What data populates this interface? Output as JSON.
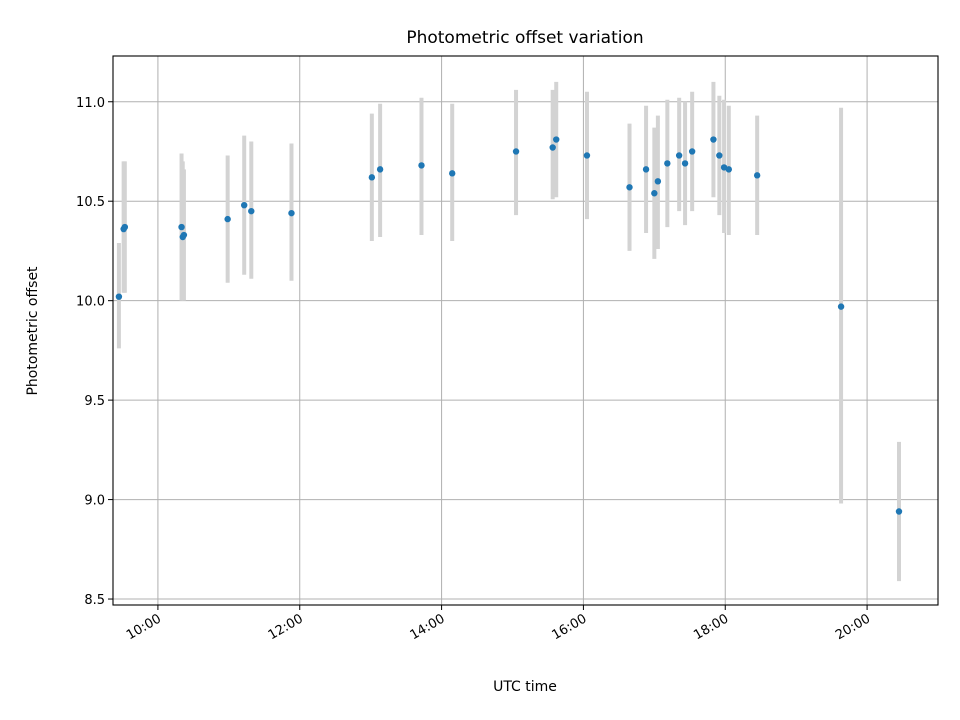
{
  "chart_data": {
    "type": "scatter",
    "title": "Photometric offset variation",
    "xlabel": "UTC time",
    "ylabel": "Photometric offset",
    "xlim": [
      "09:22",
      "21:00"
    ],
    "ylim": [
      8.47,
      11.23
    ],
    "x_tick_values": [
      "10:00",
      "12:00",
      "14:00",
      "16:00",
      "18:00",
      "20:00"
    ],
    "x_tick_labels": [
      "10:00",
      "12:00",
      "14:00",
      "16:00",
      "18:00",
      "20:00"
    ],
    "y_tick_values": [
      8.5,
      9.0,
      9.5,
      10.0,
      10.5,
      11.0
    ],
    "y_tick_labels": [
      "8.5",
      "9.0",
      "9.5",
      "10.0",
      "10.5",
      "11.0"
    ],
    "grid": true,
    "marker_color": "#1f77b4",
    "errorbar_color": "#d3d3d3",
    "series": [
      {
        "points": [
          {
            "x": "09:27",
            "y": 10.02,
            "ylo": 9.76,
            "yhi": 10.29
          },
          {
            "x": "09:31",
            "y": 10.36,
            "ylo": 10.04,
            "yhi": 10.7
          },
          {
            "x": "09:32",
            "y": 10.37,
            "ylo": 10.04,
            "yhi": 10.7
          },
          {
            "x": "10:20",
            "y": 10.37,
            "ylo": 10.0,
            "yhi": 10.74
          },
          {
            "x": "10:21",
            "y": 10.32,
            "ylo": 10.0,
            "yhi": 10.7
          },
          {
            "x": "10:22",
            "y": 10.33,
            "ylo": 10.0,
            "yhi": 10.66
          },
          {
            "x": "10:59",
            "y": 10.41,
            "ylo": 10.09,
            "yhi": 10.73
          },
          {
            "x": "11:13",
            "y": 10.48,
            "ylo": 10.13,
            "yhi": 10.83
          },
          {
            "x": "11:19",
            "y": 10.45,
            "ylo": 10.11,
            "yhi": 10.8
          },
          {
            "x": "11:53",
            "y": 10.44,
            "ylo": 10.1,
            "yhi": 10.79
          },
          {
            "x": "13:01",
            "y": 10.62,
            "ylo": 10.3,
            "yhi": 10.94
          },
          {
            "x": "13:08",
            "y": 10.66,
            "ylo": 10.32,
            "yhi": 10.99
          },
          {
            "x": "13:43",
            "y": 10.68,
            "ylo": 10.33,
            "yhi": 11.02
          },
          {
            "x": "14:09",
            "y": 10.64,
            "ylo": 10.3,
            "yhi": 10.99
          },
          {
            "x": "15:03",
            "y": 10.75,
            "ylo": 10.43,
            "yhi": 11.06
          },
          {
            "x": "15:34",
            "y": 10.77,
            "ylo": 10.51,
            "yhi": 11.06
          },
          {
            "x": "15:37",
            "y": 10.81,
            "ylo": 10.52,
            "yhi": 11.1
          },
          {
            "x": "16:03",
            "y": 10.73,
            "ylo": 10.41,
            "yhi": 11.05
          },
          {
            "x": "16:39",
            "y": 10.57,
            "ylo": 10.25,
            "yhi": 10.89
          },
          {
            "x": "16:53",
            "y": 10.66,
            "ylo": 10.34,
            "yhi": 10.98
          },
          {
            "x": "17:00",
            "y": 10.54,
            "ylo": 10.21,
            "yhi": 10.87
          },
          {
            "x": "17:03",
            "y": 10.6,
            "ylo": 10.26,
            "yhi": 10.93
          },
          {
            "x": "17:11",
            "y": 10.69,
            "ylo": 10.37,
            "yhi": 11.01
          },
          {
            "x": "17:21",
            "y": 10.73,
            "ylo": 10.45,
            "yhi": 11.02
          },
          {
            "x": "17:26",
            "y": 10.69,
            "ylo": 10.38,
            "yhi": 11.0
          },
          {
            "x": "17:32",
            "y": 10.75,
            "ylo": 10.45,
            "yhi": 11.05
          },
          {
            "x": "17:50",
            "y": 10.81,
            "ylo": 10.52,
            "yhi": 11.1
          },
          {
            "x": "17:55",
            "y": 10.73,
            "ylo": 10.43,
            "yhi": 11.03
          },
          {
            "x": "17:59",
            "y": 10.67,
            "ylo": 10.34,
            "yhi": 11.01
          },
          {
            "x": "18:03",
            "y": 10.66,
            "ylo": 10.33,
            "yhi": 10.98
          },
          {
            "x": "18:27",
            "y": 10.63,
            "ylo": 10.33,
            "yhi": 10.93
          },
          {
            "x": "19:38",
            "y": 9.97,
            "ylo": 8.98,
            "yhi": 10.97
          },
          {
            "x": "20:27",
            "y": 8.94,
            "ylo": 8.59,
            "yhi": 9.29
          }
        ]
      }
    ]
  }
}
